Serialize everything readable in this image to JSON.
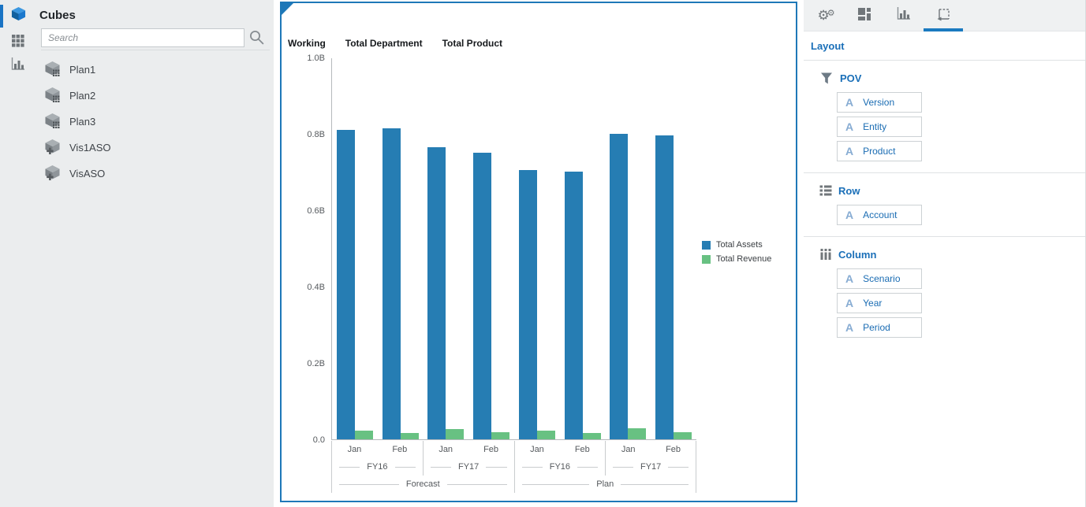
{
  "sidebar": {
    "title": "Cubes",
    "search": {
      "placeholder": "Search"
    },
    "nav": [
      {
        "icon": "cube-icon",
        "active": true
      },
      {
        "icon": "grid-icon",
        "active": false
      },
      {
        "icon": "bar-chart-icon",
        "active": false
      }
    ],
    "cubes": [
      {
        "label": "Plan1",
        "type": "block-storage"
      },
      {
        "label": "Plan2",
        "type": "block-storage"
      },
      {
        "label": "Plan3",
        "type": "block-storage"
      },
      {
        "label": "Vis1ASO",
        "type": "aggregate-storage"
      },
      {
        "label": "VisASO",
        "type": "aggregate-storage"
      }
    ]
  },
  "chart_data": {
    "type": "bar",
    "pov_headers": [
      "Working",
      "Total Department",
      "Total Product"
    ],
    "y_ticks": [
      "1.0B",
      "0.8B",
      "0.6B",
      "0.4B",
      "0.2B",
      "0.0"
    ],
    "ylim": [
      0,
      1.0
    ],
    "y_unit": "billions",
    "grid": false,
    "legend_position": "right",
    "x_levels": {
      "period": [
        "Jan",
        "Feb",
        "Jan",
        "Feb",
        "Jan",
        "Feb",
        "Jan",
        "Feb"
      ],
      "year": [
        "FY16",
        "FY17",
        "FY16",
        "FY17"
      ],
      "scenario": [
        "Forecast",
        "Plan"
      ]
    },
    "series": [
      {
        "name": "Total Assets",
        "color": "#267db3",
        "values": [
          0.81,
          0.815,
          0.765,
          0.75,
          0.705,
          0.7,
          0.8,
          0.795
        ]
      },
      {
        "name": "Total Revenue",
        "color": "#68c182",
        "values": [
          0.022,
          0.016,
          0.027,
          0.018,
          0.023,
          0.016,
          0.029,
          0.019
        ]
      }
    ]
  },
  "layout_panel": {
    "heading": "Layout",
    "tabs": [
      {
        "icon": "gears-icon",
        "selected": false
      },
      {
        "icon": "tiles-icon",
        "selected": false
      },
      {
        "icon": "bar-chart-icon",
        "selected": false
      },
      {
        "icon": "layout-icon",
        "selected": true
      }
    ],
    "sections": [
      {
        "icon": "filter-icon",
        "label": "POV",
        "fields": [
          {
            "type_glyph": "A",
            "label": "Version"
          },
          {
            "type_glyph": "A",
            "label": "Entity"
          },
          {
            "type_glyph": "A",
            "label": "Product"
          }
        ]
      },
      {
        "icon": "rows-icon",
        "label": "Row",
        "fields": [
          {
            "type_glyph": "A",
            "label": "Account"
          }
        ]
      },
      {
        "icon": "columns-icon",
        "label": "Column",
        "fields": [
          {
            "type_glyph": "A",
            "label": "Scenario"
          },
          {
            "type_glyph": "A",
            "label": "Year"
          },
          {
            "type_glyph": "A",
            "label": "Period"
          }
        ]
      }
    ]
  },
  "colors": {
    "accent_blue": "#1a74c4",
    "link_blue": "#1a6cb3",
    "bar_blue": "#267db3",
    "bar_green": "#68c182",
    "chart_border": "#1e78b8",
    "sidebar_bg": "#ebedee",
    "tabstrip_bg": "#eff1f2"
  }
}
